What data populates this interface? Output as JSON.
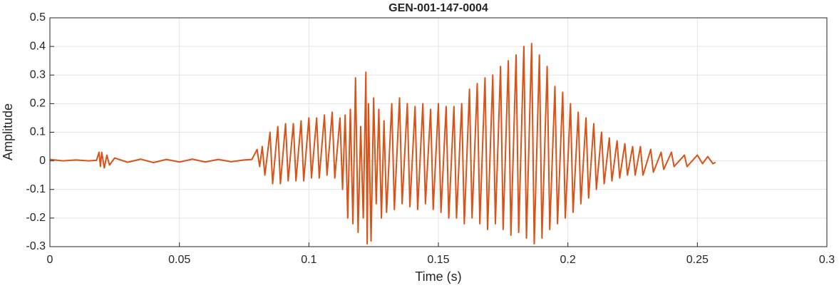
{
  "chart_data": {
    "type": "line",
    "title": "GEN-001-147-0004",
    "xlabel": "Time (s)",
    "ylabel": "Amplitude",
    "color": "#d95319",
    "grid": true,
    "xlim": [
      0,
      0.3
    ],
    "xticks": [
      0,
      0.05,
      0.1,
      0.15,
      0.2,
      0.25,
      0.3
    ],
    "ylim": [
      -0.3,
      0.5
    ],
    "yticks": [
      -0.3,
      -0.2,
      -0.1,
      0,
      0.1,
      0.2,
      0.3,
      0.4,
      0.5
    ],
    "x": [
      0,
      0.005,
      0.01,
      0.015,
      0.018,
      0.019,
      0.0195,
      0.02,
      0.021,
      0.022,
      0.023,
      0.025,
      0.03,
      0.035,
      0.04,
      0.045,
      0.05,
      0.055,
      0.06,
      0.065,
      0.07,
      0.075,
      0.078,
      0.08,
      0.081,
      0.082,
      0.083,
      0.085,
      0.086,
      0.088,
      0.089,
      0.091,
      0.092,
      0.094,
      0.095,
      0.097,
      0.098,
      0.1,
      0.101,
      0.103,
      0.104,
      0.106,
      0.107,
      0.109,
      0.11,
      0.112,
      0.113,
      0.114,
      0.115,
      0.116,
      0.117,
      0.118,
      0.119,
      0.12,
      0.121,
      0.122,
      0.1225,
      0.123,
      0.124,
      0.125,
      0.126,
      0.127,
      0.128,
      0.129,
      0.13,
      0.132,
      0.133,
      0.135,
      0.136,
      0.138,
      0.139,
      0.141,
      0.142,
      0.144,
      0.145,
      0.147,
      0.148,
      0.15,
      0.151,
      0.153,
      0.154,
      0.156,
      0.157,
      0.159,
      0.16,
      0.162,
      0.163,
      0.165,
      0.166,
      0.168,
      0.169,
      0.171,
      0.172,
      0.174,
      0.175,
      0.177,
      0.178,
      0.18,
      0.181,
      0.183,
      0.184,
      0.186,
      0.187,
      0.189,
      0.19,
      0.192,
      0.193,
      0.195,
      0.196,
      0.198,
      0.199,
      0.201,
      0.202,
      0.204,
      0.205,
      0.207,
      0.208,
      0.21,
      0.211,
      0.213,
      0.214,
      0.216,
      0.217,
      0.219,
      0.22,
      0.222,
      0.223,
      0.225,
      0.226,
      0.228,
      0.229,
      0.232,
      0.233,
      0.236,
      0.237,
      0.24,
      0.241,
      0.245,
      0.246,
      0.25,
      0.252,
      0.254,
      0.256,
      0.257
    ],
    "values": [
      0.005,
      0,
      0.003,
      0,
      0.002,
      0.03,
      -0.02,
      0.03,
      -0.025,
      0.02,
      -0.015,
      0.01,
      -0.005,
      0.006,
      -0.006,
      0.005,
      -0.004,
      0.006,
      -0.004,
      0.005,
      -0.003,
      0.003,
      0.005,
      0.04,
      -0.02,
      0.05,
      -0.05,
      0.1,
      -0.08,
      0.12,
      -0.08,
      0.13,
      -0.07,
      0.13,
      -0.07,
      0.14,
      -0.07,
      0.15,
      -0.06,
      0.15,
      -0.06,
      0.16,
      -0.05,
      0.17,
      -0.06,
      0.15,
      -0.1,
      0.16,
      -0.2,
      0.18,
      -0.22,
      0.29,
      -0.25,
      0.12,
      -0.2,
      0.31,
      -0.29,
      0.2,
      -0.28,
      0.22,
      -0.15,
      0.18,
      -0.2,
      0.14,
      -0.18,
      0.2,
      -0.17,
      0.22,
      -0.15,
      0.2,
      -0.16,
      0.19,
      -0.17,
      0.2,
      -0.15,
      0.18,
      -0.17,
      0.2,
      -0.18,
      0.19,
      -0.2,
      0.19,
      -0.2,
      0.2,
      -0.22,
      0.25,
      -0.2,
      0.27,
      -0.22,
      0.29,
      -0.24,
      0.3,
      -0.22,
      0.33,
      -0.24,
      0.35,
      -0.26,
      0.37,
      -0.25,
      0.4,
      -0.27,
      0.41,
      -0.29,
      0.37,
      -0.27,
      0.33,
      -0.24,
      0.26,
      -0.22,
      0.24,
      -0.2,
      0.2,
      -0.18,
      0.17,
      -0.15,
      0.15,
      -0.13,
      0.13,
      -0.1,
      0.1,
      -0.08,
      0.08,
      -0.07,
      0.07,
      -0.06,
      0.06,
      -0.05,
      0.05,
      -0.05,
      0.05,
      -0.05,
      0.04,
      -0.04,
      0.03,
      -0.03,
      0.03,
      -0.02,
      0.02,
      -0.02,
      0.02,
      -0.01,
      0.015,
      -0.01,
      -0.005
    ]
  }
}
